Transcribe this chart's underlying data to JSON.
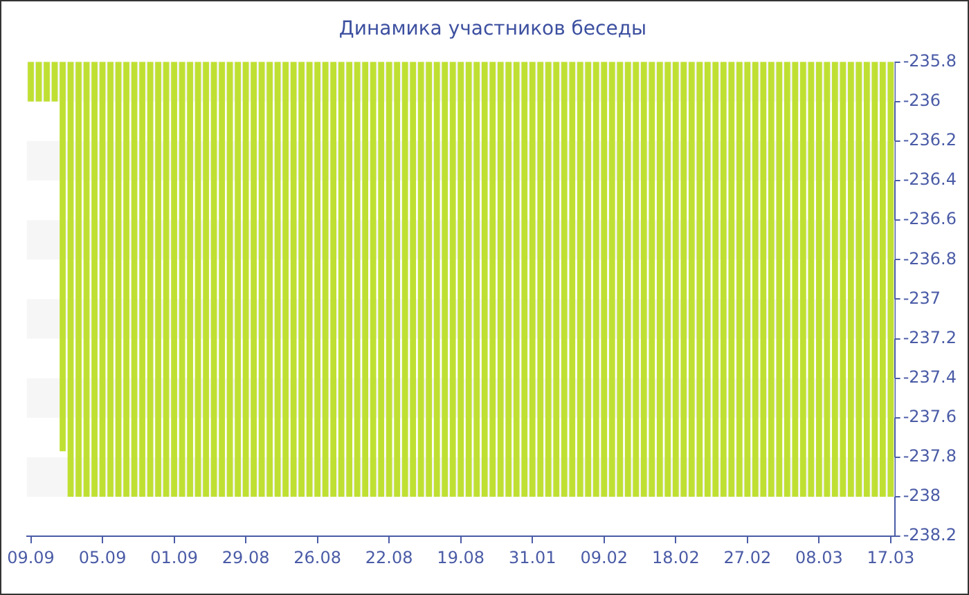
{
  "chart_data": {
    "type": "bar",
    "title": "Динамика участников беседы",
    "categories": [
      "09.09",
      null,
      null,
      null,
      null,
      null,
      null,
      null,
      null,
      "05.09",
      null,
      null,
      null,
      null,
      null,
      null,
      null,
      null,
      "01.09",
      null,
      null,
      null,
      null,
      null,
      null,
      null,
      null,
      "29.08",
      null,
      null,
      null,
      null,
      null,
      null,
      null,
      null,
      "26.08",
      null,
      null,
      null,
      null,
      null,
      null,
      null,
      null,
      "22.08",
      null,
      null,
      null,
      null,
      null,
      null,
      null,
      null,
      "19.08",
      null,
      null,
      null,
      null,
      null,
      null,
      null,
      null,
      "31.01",
      null,
      null,
      null,
      null,
      null,
      null,
      null,
      null,
      "09.02",
      null,
      null,
      null,
      null,
      null,
      null,
      null,
      null,
      "18.02",
      null,
      null,
      null,
      null,
      null,
      null,
      null,
      null,
      "27.02",
      null,
      null,
      null,
      null,
      null,
      null,
      null,
      null,
      "08.03",
      null,
      null,
      null,
      null,
      null,
      null,
      null,
      null,
      "17.03"
    ],
    "values": [
      -236,
      -236,
      -236,
      -236,
      -237.77,
      -238,
      -238,
      -238,
      -238,
      -238,
      -238,
      -238,
      -238,
      -238,
      -238,
      -238,
      -238,
      -238,
      -238,
      -238,
      -238,
      -238,
      -238,
      -238,
      -238,
      -238,
      -238,
      -238,
      -238,
      -238,
      -238,
      -238,
      -238,
      -238,
      -238,
      -238,
      -238,
      -238,
      -238,
      -238,
      -238,
      -238,
      -238,
      -238,
      -238,
      -238,
      -238,
      -238,
      -238,
      -238,
      -238,
      -238,
      -238,
      -238,
      -238,
      -238,
      -238,
      -238,
      -238,
      -238,
      -238,
      -238,
      -238,
      -238,
      -238,
      -238,
      -238,
      -238,
      -238,
      -238,
      -238,
      -238,
      -238,
      -238,
      -238,
      -238,
      -238,
      -238,
      -238,
      -238,
      -238,
      -238,
      -238,
      -238,
      -238,
      -238,
      -238,
      -238,
      -238,
      -238,
      -238,
      -238,
      -238,
      -238,
      -238,
      -238,
      -238,
      -238,
      -238,
      -238,
      -238,
      -238,
      -238,
      -238,
      -238,
      -238,
      -238,
      -238,
      -238
    ],
    "color": "#bfe033",
    "ylim": [
      -238.2,
      -235.8
    ],
    "yticks": [
      -238.2,
      -238,
      -237.8,
      -237.6,
      -237.4,
      -237.2,
      -237,
      -236.8,
      -236.6,
      -236.4,
      -236.2,
      -236,
      -235.8
    ],
    "bands": [
      {
        "axis": "y",
        "from": -238,
        "to": -237.8,
        "color": "#f6f6f6"
      },
      {
        "axis": "y",
        "from": -237.6,
        "to": -237.4,
        "color": "#f6f6f6"
      },
      {
        "axis": "y",
        "from": -237.2,
        "to": -237,
        "color": "#f6f6f6"
      },
      {
        "axis": "y",
        "from": -236.8,
        "to": -236.6,
        "color": "#f6f6f6"
      },
      {
        "axis": "y",
        "from": -236.4,
        "to": -236.2,
        "color": "#f6f6f6"
      },
      {
        "axis": "y",
        "from": -236,
        "to": -235.8,
        "color": "#f6f6f6"
      }
    ]
  }
}
